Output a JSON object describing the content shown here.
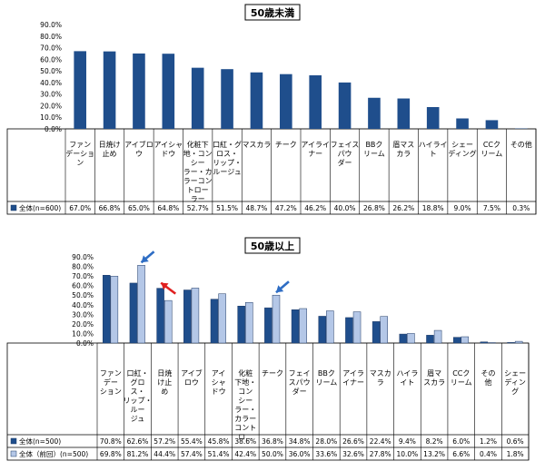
{
  "chart_data": [
    {
      "type": "bar",
      "title": "50歳未満",
      "categories": [
        "ファン\nデーショ\nン",
        "日焼け\n止め",
        "アイブロ\nウ",
        "アイシャ\nドウ",
        "化粧下\n地・コン\nシー\nラー・カ\nラーコン\nトロー\nラー",
        "口紅・グ\nロス・\nリップ・\nルージュ",
        "マスカラ",
        "チーク",
        "アイライ\nナー",
        "フェイス\nパウ\nダー",
        "BBク\nリーム",
        "眉マス\nカラ",
        "ハイライ\nト",
        "シェー\nディング",
        "CCク\nリーム",
        "その他"
      ],
      "series": [
        {
          "name": "全体(n=600)",
          "values": [
            67.0,
            66.8,
            65.0,
            64.8,
            52.7,
            51.5,
            48.7,
            47.2,
            46.2,
            40.0,
            26.8,
            26.2,
            18.8,
            9.0,
            7.5,
            0.3
          ],
          "labels": [
            "67.0%",
            "66.8%",
            "65.0%",
            "64.8%",
            "52.7%",
            "51.5%",
            "48.7%",
            "47.2%",
            "46.2%",
            "40.0%",
            "26.8%",
            "26.2%",
            "18.8%",
            "9.0%",
            "7.5%",
            "0.3%"
          ],
          "color": "#1f4e8c"
        }
      ],
      "yticks": [
        "90.0%",
        "80.0%",
        "70.0%",
        "60.0%",
        "50.0%",
        "40.0%",
        "30.0%",
        "20.0%",
        "10.0%",
        "0.0%"
      ],
      "ylim": [
        0,
        90
      ],
      "grid": false
    },
    {
      "type": "bar",
      "title": "50歳以上",
      "categories": [
        "ファン\nデー\nション",
        "口紅・\nグロ\nス・\nリップ・\nルー\nジュ",
        "日焼\nけ止\nめ",
        "アイブ\nロウ",
        "アイ\nシャ\nドウ",
        "化粧\n下地・\nコン\nシー\nラー・\nカラー\nコント\nロ…",
        "チーク",
        "フェイ\nスパウ\nダー",
        "BBク\nリーム",
        "アイラ\nイナー",
        "マスカ\nラ",
        "ハイラ\nイト",
        "眉マ\nスカラ",
        "CCク\nリーム",
        "その\n他",
        "シェー\nディン\nグ"
      ],
      "series": [
        {
          "name": "全体(n=500)",
          "values": [
            70.8,
            62.6,
            57.2,
            55.4,
            45.8,
            38.6,
            36.8,
            34.8,
            28.0,
            26.6,
            22.4,
            9.4,
            8.2,
            6.0,
            1.2,
            0.6
          ],
          "labels": [
            "70.8%",
            "62.6%",
            "57.2%",
            "55.4%",
            "45.8%",
            "38.6%",
            "36.8%",
            "34.8%",
            "28.0%",
            "26.6%",
            "22.4%",
            "9.4%",
            "8.2%",
            "6.0%",
            "1.2%",
            "0.6%"
          ],
          "color": "#1f4e8c"
        },
        {
          "name": "全体（前回）(n=500)",
          "values": [
            69.8,
            81.2,
            44.4,
            57.4,
            51.4,
            42.4,
            50.0,
            36.0,
            33.6,
            32.6,
            27.8,
            10.0,
            13.2,
            6.6,
            0.4,
            1.8
          ],
          "labels": [
            "69.8%",
            "81.2%",
            "44.4%",
            "57.4%",
            "51.4%",
            "42.4%",
            "50.0%",
            "36.0%",
            "33.6%",
            "32.6%",
            "27.8%",
            "10.0%",
            "13.2%",
            "6.6%",
            "0.4%",
            "1.8%"
          ],
          "color": "#b4c7e7"
        }
      ],
      "yticks": [
        "90.0%",
        "80.0%",
        "70.0%",
        "60.0%",
        "50.0%",
        "40.0%",
        "30.0%",
        "20.0%",
        "10.0%",
        "0.0%"
      ],
      "ylim": [
        0,
        90
      ],
      "grid": false,
      "arrow_categories": [
        {
          "index": 1,
          "color": "#2e6dc4"
        },
        {
          "index": 2,
          "color": "#e02020"
        },
        {
          "index": 6,
          "color": "#2e6dc4"
        }
      ]
    }
  ]
}
